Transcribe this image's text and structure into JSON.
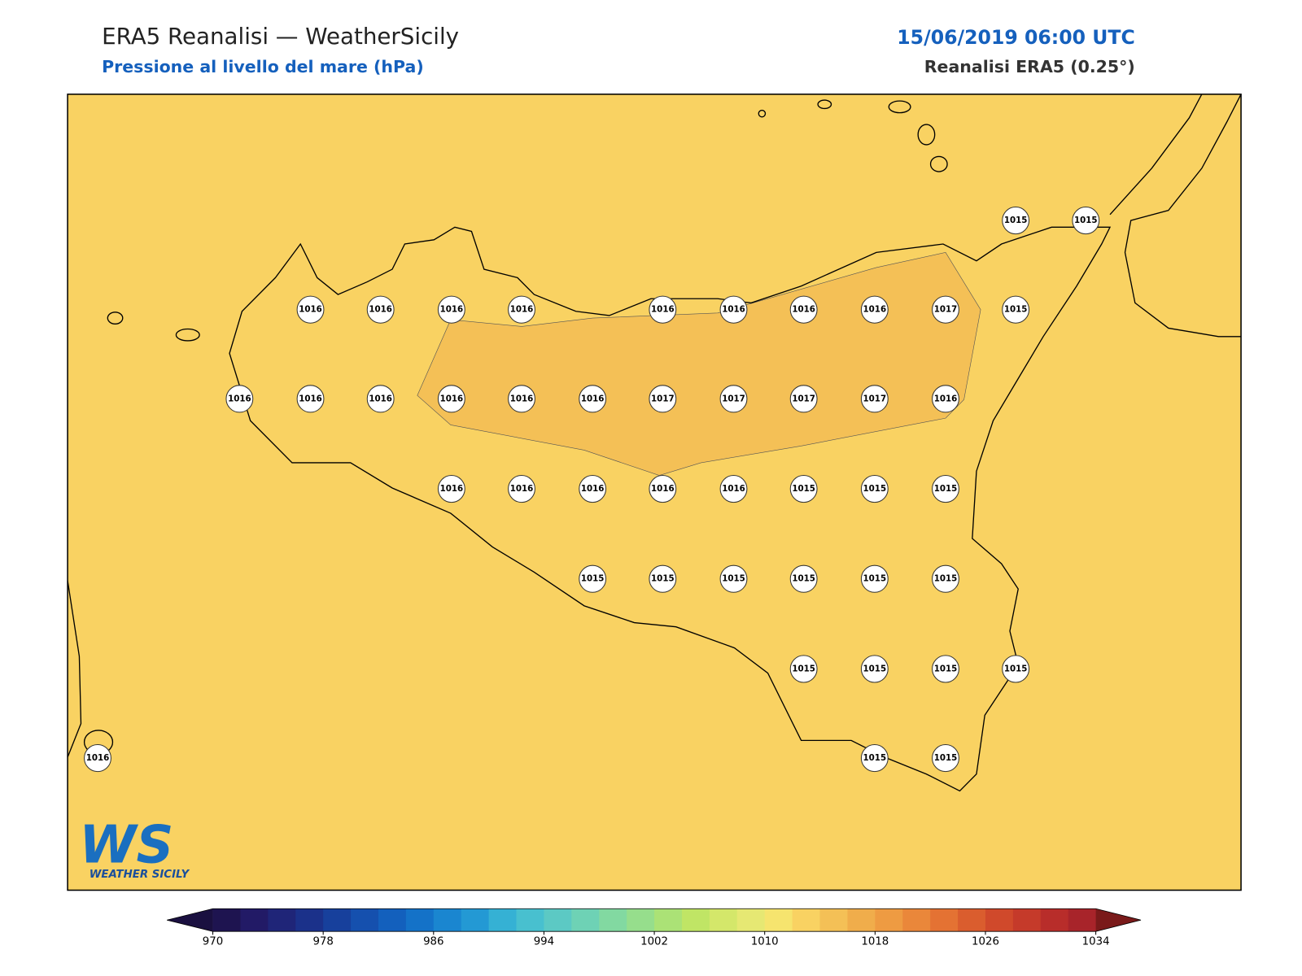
{
  "header": {
    "title": "ERA5 Reanalisi — WeatherSicily",
    "subtitle": "Pressione al livello del mare (hPa)",
    "date": "15/06/2019 06:00 UTC",
    "source": "Reanalisi ERA5 (0.25°)"
  },
  "map": {
    "fill": "#f9d262",
    "shade": "#f4c056"
  },
  "stations": [
    1015,
    1015,
    1016,
    1016,
    1016,
    1016,
    1016,
    1016,
    1016,
    1016,
    1017,
    1015,
    1016,
    1016,
    1016,
    1016,
    1016,
    1016,
    1017,
    1017,
    1017,
    1017,
    1016,
    1016,
    1016,
    1016,
    1016,
    1016,
    1015,
    1015,
    1015,
    1015,
    1015,
    1015,
    1015,
    1015,
    1015,
    1015,
    1015,
    1015,
    1015,
    1016,
    1015,
    1015
  ],
  "colorbar": {
    "ticks": [
      970,
      978,
      986,
      994,
      1002,
      1010,
      1018,
      1026,
      1034
    ],
    "under": "#1a1040",
    "over": "#7a1a1a",
    "colors": [
      "#1e1450",
      "#221a66",
      "#1f2578",
      "#1b318a",
      "#17409c",
      "#1550ae",
      "#1360bd",
      "#1472c8",
      "#1a86d0",
      "#2399d4",
      "#35b1d4",
      "#48c0cf",
      "#5cc9c4",
      "#6ed2b5",
      "#82d9a1",
      "#96de8c",
      "#abe276",
      "#c0e565",
      "#d4e76a",
      "#e6e873",
      "#f6e46e",
      "#f9d262",
      "#f4c056",
      "#f0ad4b",
      "#ee9b42",
      "#ea873a",
      "#e47233",
      "#da5d2e",
      "#d0492b",
      "#c53a2a",
      "#b82d2a",
      "#a8242a"
    ]
  },
  "logo": {
    "mark": "WS",
    "name": "WEATHER SICILY"
  }
}
